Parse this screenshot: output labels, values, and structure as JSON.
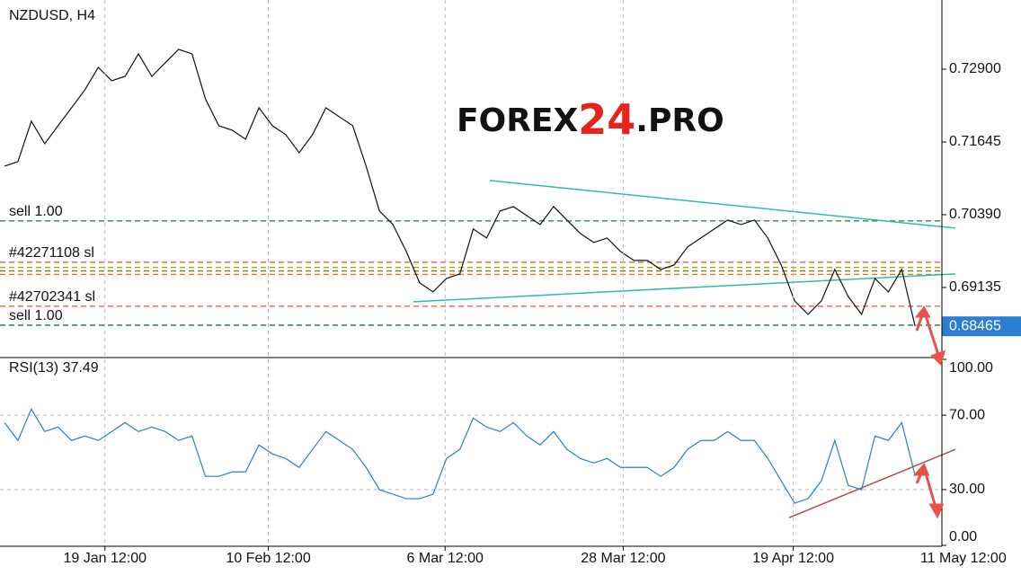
{
  "chart_data": [
    {
      "type": "line",
      "title": "NZDUSD, H4",
      "watermark": [
        "FOREX",
        "24",
        ".PRO"
      ],
      "x": [
        0,
        1,
        2,
        3,
        4,
        5,
        6,
        7,
        8,
        9,
        10,
        11,
        12,
        13,
        14,
        15,
        16,
        17,
        18,
        19,
        20,
        21,
        22,
        23,
        24,
        25,
        26,
        27,
        28,
        29,
        30,
        31,
        32,
        33,
        34,
        35,
        36,
        37,
        38,
        39,
        40,
        41,
        42,
        43,
        44,
        45,
        46,
        47,
        48,
        49,
        50,
        51,
        52,
        53,
        54,
        55,
        56,
        57,
        58,
        59,
        60,
        61,
        62,
        63,
        64,
        65,
        66,
        67,
        68
      ],
      "series": [
        {
          "name": "NZDUSD",
          "color": "#111111",
          "values": [
            0.71227,
            0.71305,
            0.72002,
            0.71615,
            0.71925,
            0.72234,
            0.72544,
            0.72931,
            0.72699,
            0.72776,
            0.73164,
            0.72776,
            0.73009,
            0.73241,
            0.73164,
            0.72389,
            0.71925,
            0.71847,
            0.71692,
            0.72234,
            0.71925,
            0.7177,
            0.7146,
            0.7177,
            0.72234,
            0.72079,
            0.71925,
            0.71227,
            0.70453,
            0.70221,
            0.69756,
            0.69214,
            0.69059,
            0.69291,
            0.69369,
            0.70143,
            0.69988,
            0.70453,
            0.7053,
            0.70375,
            0.70221,
            0.7053,
            0.70298,
            0.70066,
            0.69911,
            0.69988,
            0.69756,
            0.69601,
            0.69601,
            0.69446,
            0.69523,
            0.69833,
            0.69988,
            0.70143,
            0.70298,
            0.70221,
            0.70298,
            0.69988,
            0.69523,
            0.68904,
            0.68671,
            0.68904,
            0.69446,
            0.68981,
            0.68671,
            0.69291,
            0.69059,
            0.69446,
            0.68465
          ]
        }
      ],
      "last_price": 0.68465,
      "levels": [
        {
          "label": "sell 1.00",
          "value": 0.70283,
          "color": "#1a7a3a"
        },
        {
          "label": "#42271108 sl",
          "value": 0.6957,
          "color": "#e0553a"
        },
        {
          "label": null,
          "value": 0.6948,
          "color": "#c8a000"
        },
        {
          "label": null,
          "value": 0.6942,
          "color": "#7a7a20"
        },
        {
          "label": null,
          "value": 0.6936,
          "color": "#e07a20"
        },
        {
          "label": "#42702341 sl",
          "value": 0.68811,
          "color": "#e0553a"
        },
        {
          "label": "sell 1.00",
          "value": 0.68485,
          "color": "#1a7a3a"
        }
      ],
      "trendlines": [
        {
          "x": [
            36.24,
            71.0
          ],
          "y": [
            0.7098,
            0.70159
          ],
          "color": "#2bbfa8"
        },
        {
          "x": [
            30.53,
            71.0
          ],
          "y": [
            0.68888,
            0.69369
          ],
          "color": "#2bbfa8"
        }
      ],
      "xlim": [
        -0.34,
        70.0
      ],
      "ylim": [
        0.67926,
        0.74093
      ],
      "yticks": [
        {
          "value": 0.729,
          "label": "0.72900"
        },
        {
          "value": 0.71645,
          "label": "0.71645"
        },
        {
          "value": 0.7039,
          "label": "0.70390"
        },
        {
          "value": 0.69135,
          "label": "0.69135"
        }
      ]
    },
    {
      "type": "line",
      "title": "RSI(13) 37.49",
      "x": [
        0,
        1,
        2,
        3,
        4,
        5,
        6,
        7,
        8,
        9,
        10,
        11,
        12,
        13,
        14,
        15,
        16,
        17,
        18,
        19,
        20,
        21,
        22,
        23,
        24,
        25,
        26,
        27,
        28,
        29,
        30,
        31,
        32,
        33,
        34,
        35,
        36,
        37,
        38,
        39,
        40,
        41,
        42,
        43,
        44,
        45,
        46,
        47,
        48,
        49,
        50,
        51,
        52,
        53,
        54,
        55,
        56,
        57,
        58,
        59,
        60,
        61,
        62,
        63,
        64,
        65,
        66,
        67,
        68
      ],
      "series": [
        {
          "name": "RSI(13)",
          "color": "#2a7fd0",
          "values": [
            66.0,
            56.4,
            73.3,
            61.2,
            63.6,
            56.4,
            58.8,
            56.4,
            61.2,
            66.0,
            61.2,
            63.6,
            61.2,
            56.4,
            58.8,
            37.1,
            37.1,
            39.5,
            39.5,
            54.0,
            49.2,
            46.7,
            41.9,
            51.6,
            61.2,
            56.4,
            51.6,
            41.9,
            29.9,
            27.5,
            25.1,
            25.1,
            27.5,
            46.7,
            51.6,
            68.4,
            63.6,
            61.2,
            66.0,
            58.8,
            54.0,
            61.2,
            51.6,
            46.7,
            44.3,
            46.7,
            41.9,
            41.9,
            41.9,
            37.1,
            41.9,
            51.6,
            56.4,
            56.4,
            61.2,
            56.4,
            56.4,
            46.7,
            34.7,
            22.7,
            25.1,
            34.7,
            56.4,
            32.3,
            29.9,
            58.8,
            56.4,
            66.0,
            37.49
          ]
        }
      ],
      "trendlines": [
        {
          "x": [
            58.59,
            71.0
          ],
          "y": [
            14.9,
            51.6
          ],
          "color": "#b0504a"
        }
      ],
      "xlim": [
        -0.34,
        70.0
      ],
      "ylim": [
        0,
        100
      ],
      "yticks": [
        {
          "value": 100,
          "label": "100.00"
        },
        {
          "value": 70,
          "label": "70.00"
        },
        {
          "value": 30,
          "label": "30.00"
        },
        {
          "value": 0,
          "label": "0.00"
        }
      ],
      "xticks": [
        {
          "value": 7.5,
          "label": "19 Jan 12:00"
        },
        {
          "value": 19.7,
          "label": "10 Feb 12:00"
        },
        {
          "value": 32.9,
          "label": "6 Mar 12:00"
        },
        {
          "value": 46.2,
          "label": "28 Mar 12:00"
        },
        {
          "value": 58.9,
          "label": "19 Apr 12:00"
        },
        {
          "value": 71.6,
          "label": "11 May 12:00"
        }
      ],
      "grid": true
    }
  ]
}
